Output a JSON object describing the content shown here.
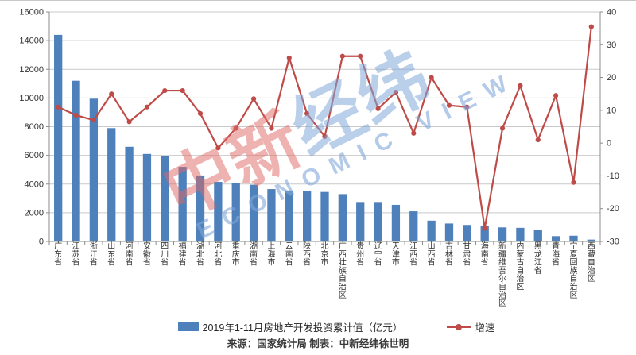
{
  "watermark": {
    "cn_part1": "中新",
    "cn_part2": "经纬",
    "en": "ECONOMIC VIEW"
  },
  "legend": {
    "investment": "2019年1-11月房地产开发投资累计值（亿元）",
    "growth": "增速"
  },
  "source_note": "来源：国家统计局 制表：中新经纬徐世明",
  "colors": {
    "bar": "#4E80BC",
    "line": "#BE4B48",
    "grid": "#C9C9C9",
    "axis": "#8C8C8C",
    "text": "#333333",
    "watermark_pink": "rgba(222,104,98,0.50)",
    "watermark_blue": "rgba(128,167,217,0.55)"
  },
  "chart_data": {
    "type": "combo_bar_line",
    "title": "",
    "categories": [
      "广东省",
      "江苏省",
      "浙江省",
      "山东省",
      "河南省",
      "安徽省",
      "四川省",
      "福建省",
      "湖北省",
      "河北省",
      "重庆市",
      "湖南省",
      "上海市",
      "云南省",
      "陕西省",
      "北京市",
      "广西壮族自治区",
      "贵州省",
      "辽宁省",
      "天津市",
      "江西省",
      "山西省",
      "吉林省",
      "甘肃省",
      "海南省",
      "新疆维吾尔自治区",
      "内蒙古自治区",
      "黑龙江省",
      "青海省",
      "宁夏回族自治区",
      "西藏自治区"
    ],
    "series": [
      {
        "name": "2019年1-11月房地产开发投资累计值（亿元）",
        "type": "bar",
        "axis": "left",
        "values": [
          14400,
          11200,
          9950,
          7900,
          6600,
          6100,
          5950,
          5200,
          4600,
          4150,
          4050,
          3950,
          3650,
          3550,
          3500,
          3450,
          3300,
          2750,
          2750,
          2550,
          2100,
          1450,
          1250,
          1150,
          1080,
          980,
          950,
          830,
          370,
          400,
          130
        ]
      },
      {
        "name": "增速",
        "type": "line",
        "axis": "right",
        "values": [
          11,
          8.5,
          7,
          15,
          6.5,
          11,
          16,
          16,
          9,
          -1.5,
          4.5,
          13.5,
          4.5,
          26,
          9,
          2,
          26.5,
          26.5,
          10.5,
          15.5,
          3,
          20,
          11.5,
          11,
          -26,
          4.5,
          17.5,
          1,
          14.5,
          -12,
          35.5
        ]
      }
    ],
    "left_axis": {
      "min": 0,
      "max": 16000,
      "step": 2000
    },
    "right_axis": {
      "min": -30,
      "max": 40,
      "step": 10
    },
    "grid": true,
    "legend_position": "bottom"
  }
}
